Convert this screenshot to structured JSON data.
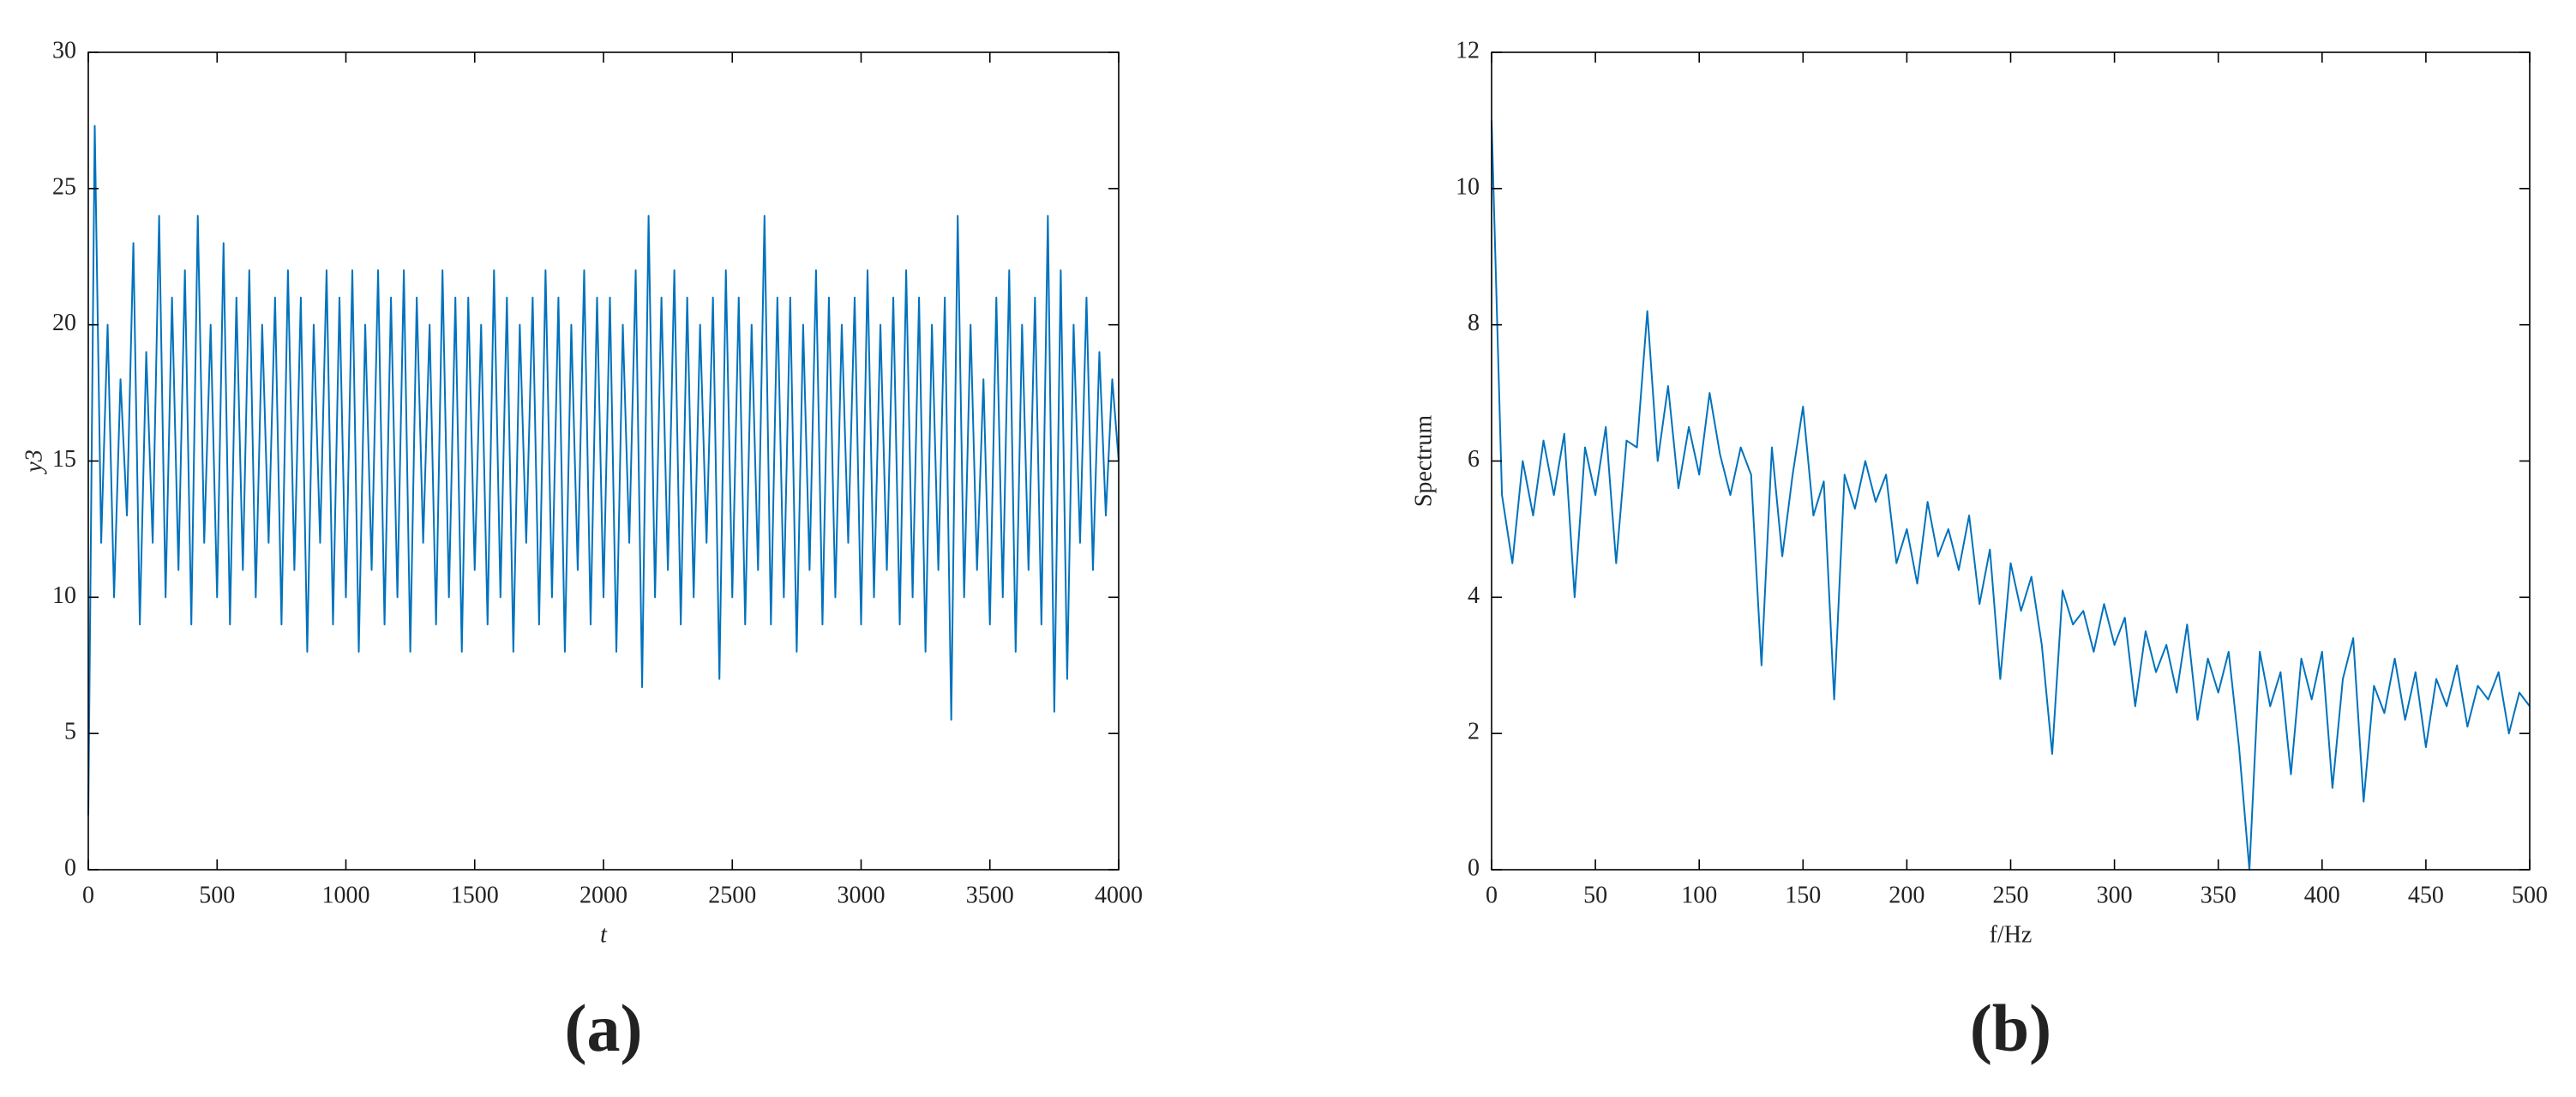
{
  "chart_data": [
    {
      "type": "line",
      "panel_label": "(a)",
      "x_label": "t",
      "y_label": "y3",
      "xlim": [
        0,
        4000
      ],
      "xticks": [
        0,
        500,
        1000,
        1500,
        2000,
        2500,
        3000,
        3500,
        4000
      ],
      "ylim": [
        0,
        30
      ],
      "yticks": [
        0,
        5,
        10,
        15,
        20,
        25,
        30
      ],
      "x": [
        0,
        25,
        50,
        75,
        100,
        125,
        150,
        175,
        200,
        225,
        250,
        275,
        300,
        325,
        350,
        375,
        400,
        425,
        450,
        475,
        500,
        525,
        550,
        575,
        600,
        625,
        650,
        675,
        700,
        725,
        750,
        775,
        800,
        825,
        850,
        875,
        900,
        925,
        950,
        975,
        1000,
        1025,
        1050,
        1075,
        1100,
        1125,
        1150,
        1175,
        1200,
        1225,
        1250,
        1275,
        1300,
        1325,
        1350,
        1375,
        1400,
        1425,
        1450,
        1475,
        1500,
        1525,
        1550,
        1575,
        1600,
        1625,
        1650,
        1675,
        1700,
        1725,
        1750,
        1775,
        1800,
        1825,
        1850,
        1875,
        1900,
        1925,
        1950,
        1975,
        2000,
        2025,
        2050,
        2075,
        2100,
        2125,
        2150,
        2175,
        2200,
        2225,
        2250,
        2275,
        2300,
        2325,
        2350,
        2375,
        2400,
        2425,
        2450,
        2475,
        2500,
        2525,
        2550,
        2575,
        2600,
        2625,
        2650,
        2675,
        2700,
        2725,
        2750,
        2775,
        2800,
        2825,
        2850,
        2875,
        2900,
        2925,
        2950,
        2975,
        3000,
        3025,
        3050,
        3075,
        3100,
        3125,
        3150,
        3175,
        3200,
        3225,
        3250,
        3275,
        3300,
        3325,
        3350,
        3375,
        3400,
        3425,
        3450,
        3475,
        3500,
        3525,
        3550,
        3575,
        3600,
        3625,
        3650,
        3675,
        3700,
        3725,
        3750,
        3775,
        3800,
        3825,
        3850,
        3875,
        3900,
        3925,
        3950,
        3975,
        4000
      ],
      "series": [
        {
          "color": "#0072bd",
          "values": [
            2,
            27.3,
            12,
            20,
            10,
            18,
            13,
            23,
            9,
            19,
            12,
            24,
            10,
            21,
            11,
            22,
            9,
            24,
            12,
            20,
            10,
            23,
            9,
            21,
            11,
            22,
            10,
            20,
            12,
            21,
            9,
            22,
            11,
            21,
            8,
            20,
            12,
            22,
            9,
            21,
            10,
            22,
            8,
            20,
            11,
            22,
            9,
            21,
            10,
            22,
            8,
            21,
            12,
            20,
            9,
            22,
            10,
            21,
            8,
            21,
            11,
            20,
            9,
            22,
            10,
            21,
            8,
            20,
            12,
            21,
            9,
            22,
            10,
            21,
            8,
            20,
            11,
            22,
            9,
            21,
            10,
            21,
            8,
            20,
            12,
            22,
            6.7,
            24,
            10,
            21,
            11,
            22,
            9,
            21,
            10,
            20,
            12,
            21,
            7,
            22,
            10,
            21,
            9,
            20,
            11,
            24,
            9,
            21,
            10,
            21,
            8,
            20,
            11,
            22,
            9,
            21,
            10,
            20,
            12,
            21,
            9,
            22,
            10,
            20,
            11,
            21,
            9,
            22,
            10,
            21,
            8,
            20,
            11,
            21,
            5.5,
            24,
            10,
            20,
            11,
            18,
            9,
            21,
            10,
            22,
            8,
            20,
            11,
            21,
            9,
            24,
            5.8,
            22,
            7,
            20,
            12,
            21,
            11,
            19,
            13,
            18,
            15
          ]
        }
      ]
    },
    {
      "type": "line",
      "panel_label": "(b)",
      "x_label": "f/Hz",
      "y_label": "Spectrum",
      "xlim": [
        0,
        500
      ],
      "xticks": [
        0,
        50,
        100,
        150,
        200,
        250,
        300,
        350,
        400,
        450,
        500
      ],
      "ylim": [
        0,
        12
      ],
      "yticks": [
        0,
        2,
        4,
        6,
        8,
        10,
        12
      ],
      "x": [
        0,
        5,
        10,
        15,
        20,
        25,
        30,
        35,
        40,
        45,
        50,
        55,
        60,
        65,
        70,
        75,
        80,
        85,
        90,
        95,
        100,
        105,
        110,
        115,
        120,
        125,
        130,
        135,
        140,
        145,
        150,
        155,
        160,
        165,
        170,
        175,
        180,
        185,
        190,
        195,
        200,
        205,
        210,
        215,
        220,
        225,
        230,
        235,
        240,
        245,
        250,
        255,
        260,
        265,
        270,
        275,
        280,
        285,
        290,
        295,
        300,
        305,
        310,
        315,
        320,
        325,
        330,
        335,
        340,
        345,
        350,
        355,
        360,
        365,
        370,
        375,
        380,
        385,
        390,
        395,
        400,
        405,
        410,
        415,
        420,
        425,
        430,
        435,
        440,
        445,
        450,
        455,
        460,
        465,
        470,
        475,
        480,
        485,
        490,
        495,
        500
      ],
      "series": [
        {
          "color": "#0072bd",
          "values": [
            11,
            5.5,
            4.5,
            6,
            5.2,
            6.3,
            5.5,
            6.4,
            4,
            6.2,
            5.5,
            6.5,
            4.5,
            6.3,
            6.2,
            8.2,
            6,
            7.1,
            5.6,
            6.5,
            5.8,
            7,
            6.1,
            5.5,
            6.2,
            5.8,
            3,
            6.2,
            4.6,
            5.8,
            6.8,
            5.2,
            5.7,
            2.5,
            5.8,
            5.3,
            6,
            5.4,
            5.8,
            4.5,
            5,
            4.2,
            5.4,
            4.6,
            5,
            4.4,
            5.2,
            3.9,
            4.7,
            2.8,
            4.5,
            3.8,
            4.3,
            3.3,
            1.7,
            4.1,
            3.6,
            3.8,
            3.2,
            3.9,
            3.3,
            3.7,
            2.4,
            3.5,
            2.9,
            3.3,
            2.6,
            3.6,
            2.2,
            3.1,
            2.6,
            3.2,
            1.8,
            0,
            3.2,
            2.4,
            2.9,
            1.4,
            3.1,
            2.5,
            3.2,
            1.2,
            2.8,
            3.4,
            1,
            2.7,
            2.3,
            3.1,
            2.2,
            2.9,
            1.8,
            2.8,
            2.4,
            3,
            2.1,
            2.7,
            2.5,
            2.9,
            2,
            2.6,
            2.4
          ]
        }
      ]
    }
  ]
}
